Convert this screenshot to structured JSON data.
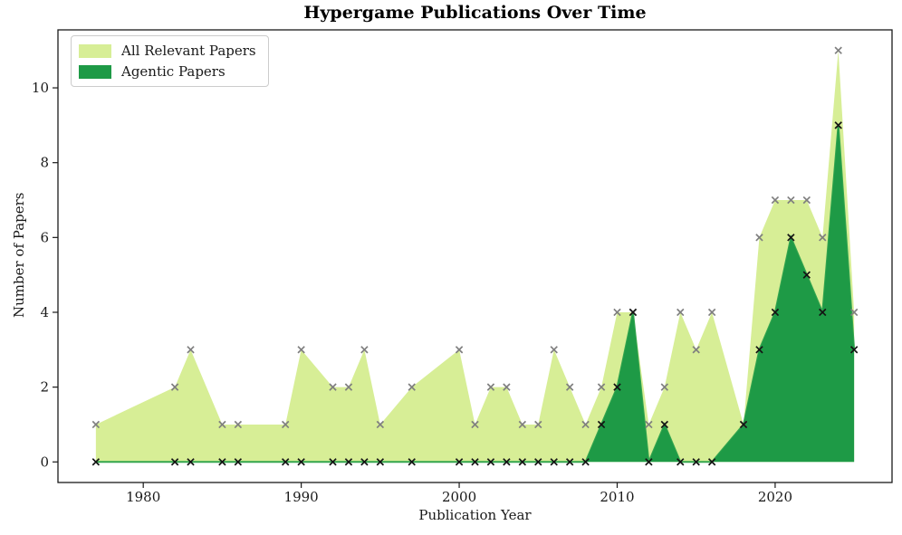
{
  "chart_data": {
    "type": "area",
    "title": "Hypergame Publications Over Time",
    "xlabel": "Publication Year",
    "ylabel": "Number of Papers",
    "x": [
      1977,
      1982,
      1983,
      1985,
      1986,
      1989,
      1990,
      1992,
      1993,
      1994,
      1995,
      1997,
      2000,
      2001,
      2002,
      2003,
      2004,
      2005,
      2006,
      2007,
      2008,
      2009,
      2010,
      2011,
      2012,
      2013,
      2014,
      2015,
      2016,
      2018,
      2019,
      2020,
      2021,
      2022,
      2023,
      2024,
      2025
    ],
    "series": [
      {
        "name": "All Relevant Papers",
        "values": [
          1,
          2,
          3,
          1,
          1,
          1,
          3,
          2,
          2,
          3,
          1,
          2,
          3,
          1,
          2,
          2,
          1,
          1,
          3,
          2,
          1,
          2,
          4,
          4,
          1,
          2,
          4,
          3,
          4,
          1,
          6,
          7,
          7,
          7,
          6,
          11,
          4
        ],
        "fill_color": "#d7ee96",
        "marker": "x",
        "marker_color": "#7f7f7f"
      },
      {
        "name": "Agentic Papers",
        "values": [
          0,
          0,
          0,
          0,
          0,
          0,
          0,
          0,
          0,
          0,
          0,
          0,
          0,
          0,
          0,
          0,
          0,
          0,
          0,
          0,
          0,
          1,
          2,
          4,
          0,
          1,
          0,
          0,
          0,
          1,
          3,
          4,
          6,
          5,
          4,
          9,
          3
        ],
        "fill_color": "#1e9a46",
        "line_color": "#34a64f",
        "marker": "x",
        "marker_color": "#141414"
      }
    ],
    "xticks": [
      1980,
      1990,
      2000,
      2010,
      2020
    ],
    "yticks": [
      0,
      2,
      4,
      6,
      8,
      10
    ],
    "xlim": [
      1974.6,
      2027.4
    ],
    "ylim": [
      -0.55,
      11.55
    ],
    "grid": false,
    "legend_position": "upper left",
    "axis_color": "#1a1a1a"
  }
}
